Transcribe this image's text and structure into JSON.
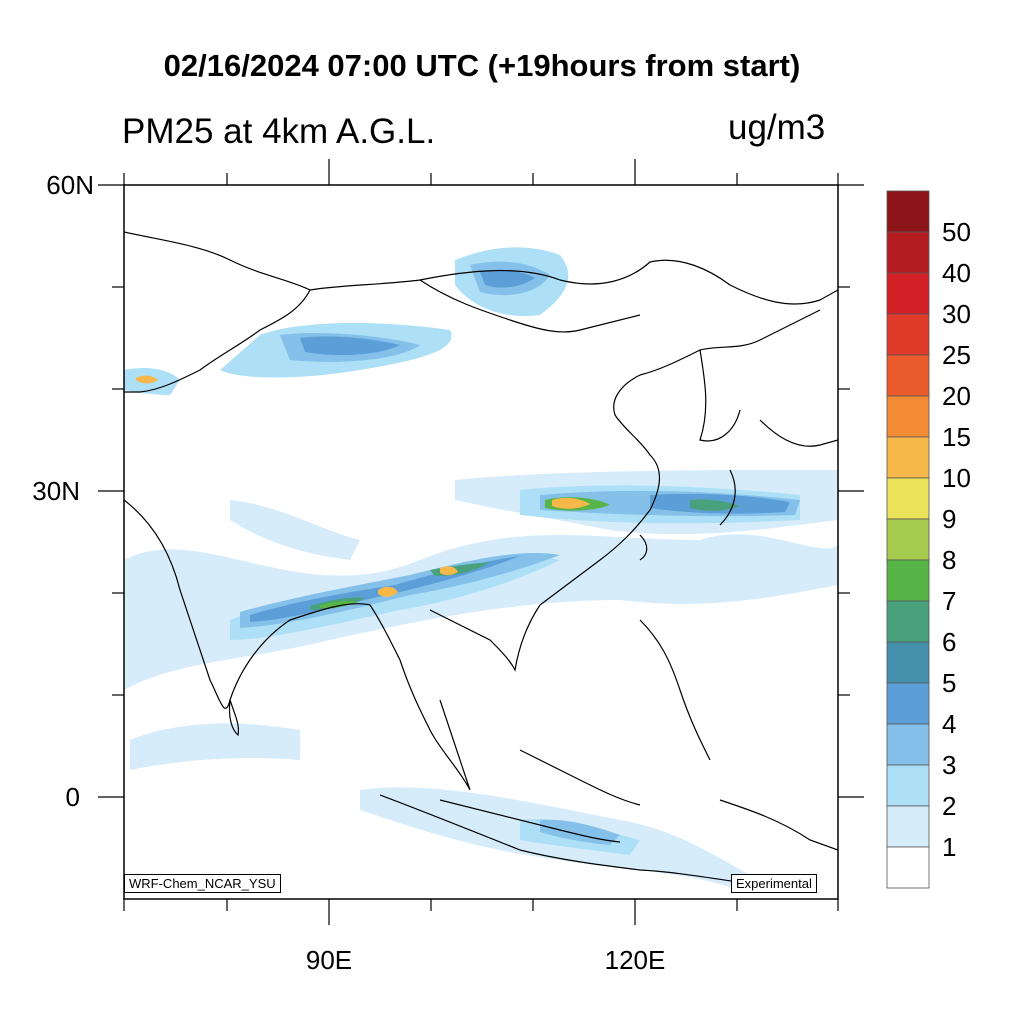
{
  "header": {
    "title": "02/16/2024 07:00 UTC (+19hours from start)",
    "field": "PM25 at 4km A.G.L.",
    "units": "ug/m3"
  },
  "axes": {
    "lat_labels": [
      "60N",
      "30N",
      "0"
    ],
    "lon_labels": [
      "90E",
      "120E"
    ]
  },
  "corner_labels": {
    "model": "WRF-Chem_NCAR_YSU",
    "status": "Experimental"
  },
  "colorbar": {
    "levels": [
      "50",
      "40",
      "30",
      "25",
      "20",
      "15",
      "10",
      "9",
      "8",
      "7",
      "6",
      "5",
      "4",
      "3",
      "2",
      "1"
    ],
    "colors": [
      "#8c1419",
      "#b51d22",
      "#d32027",
      "#e03a2a",
      "#ea5a2a",
      "#f38b34",
      "#f6b849",
      "#ebe35a",
      "#a7cb4f",
      "#57b548",
      "#48a17a",
      "#4590ad",
      "#5c9fd8",
      "#84c0e9",
      "#ade0f6",
      "#d6ecfb",
      "#ffffff"
    ]
  }
}
